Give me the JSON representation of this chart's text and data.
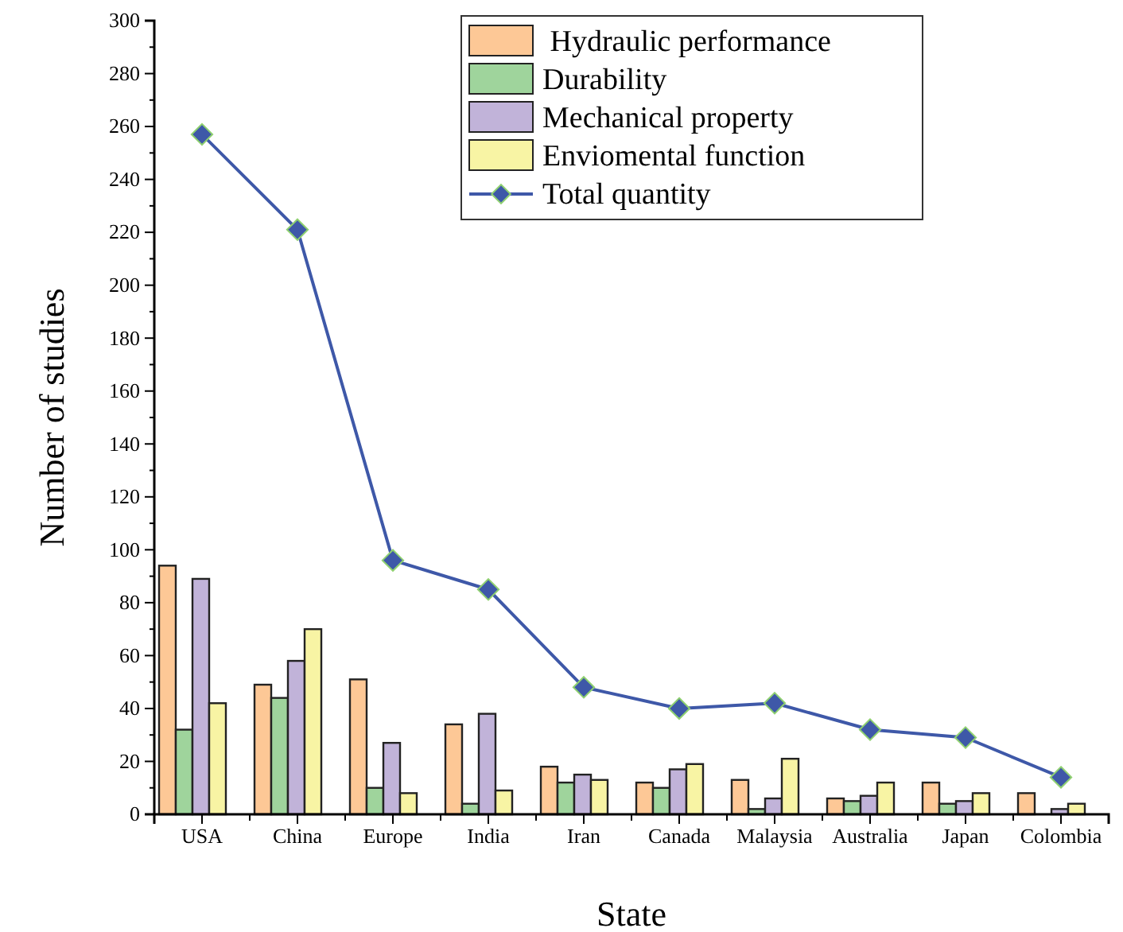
{
  "chart_data": {
    "type": "bar",
    "xlabel": "State",
    "ylabel": "Number of studies",
    "categories": [
      "USA",
      "China",
      "Europe",
      "India",
      "Iran",
      "Canada",
      "Malaysia",
      "Australia",
      "Japan",
      "Colombia"
    ],
    "series": [
      {
        "name": " Hydraulic performance",
        "color": "#fdc896",
        "values": [
          94,
          49,
          51,
          34,
          18,
          12,
          13,
          6,
          12,
          8
        ]
      },
      {
        "name": "Durability",
        "color": "#9fd49c",
        "values": [
          32,
          44,
          10,
          4,
          12,
          10,
          2,
          5,
          4,
          0
        ]
      },
      {
        "name": "Mechanical property",
        "color": "#c1b3d9",
        "values": [
          89,
          58,
          27,
          38,
          15,
          17,
          6,
          7,
          5,
          2
        ]
      },
      {
        "name": "Enviomental function",
        "color": "#f8f4a4",
        "values": [
          42,
          70,
          8,
          9,
          13,
          19,
          21,
          12,
          8,
          4
        ]
      },
      {
        "name": "Total quantity",
        "type": "line",
        "color": "#3e58a8",
        "marker": "diamond",
        "values": [
          257,
          221,
          96,
          85,
          48,
          40,
          42,
          32,
          29,
          14
        ]
      }
    ],
    "ylim": [
      0,
      300
    ],
    "yticks": [
      0,
      20,
      40,
      60,
      80,
      100,
      120,
      140,
      160,
      180,
      200,
      220,
      240,
      260,
      280,
      300
    ],
    "legend": "top right"
  }
}
